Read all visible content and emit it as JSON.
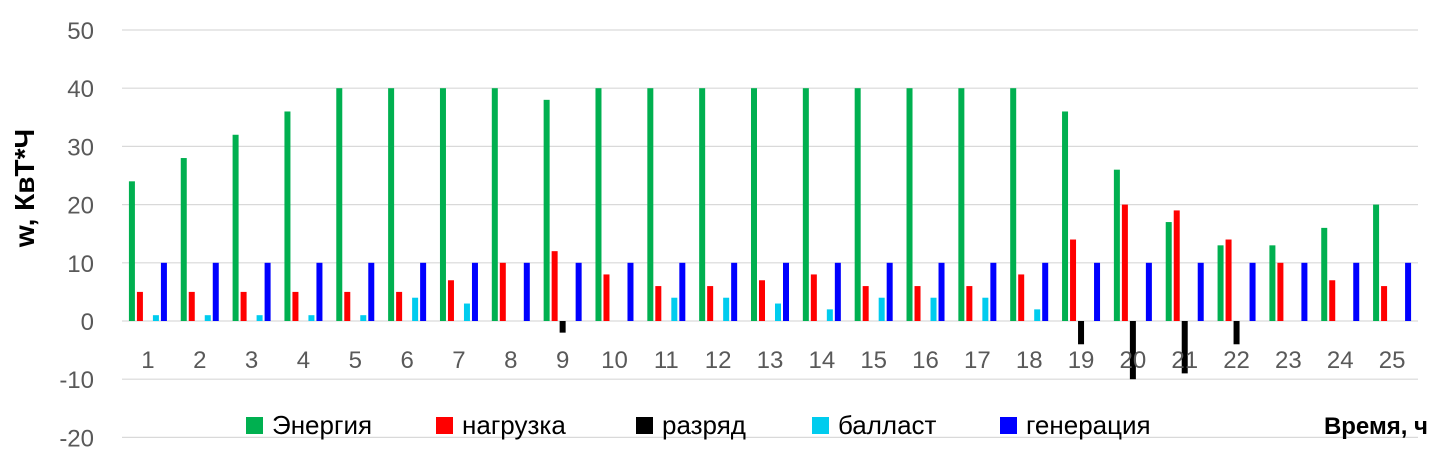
{
  "chart_data": {
    "type": "bar",
    "ylabel": "w, КвТ*Ч",
    "xlabel": "Время, ч",
    "ylim": [
      -20,
      50
    ],
    "yticks": [
      50,
      40,
      30,
      20,
      10,
      0,
      -10,
      -20
    ],
    "grid": true,
    "legend_position": "bottom",
    "categories": [
      "1",
      "2",
      "3",
      "4",
      "5",
      "6",
      "7",
      "8",
      "9",
      "10",
      "11",
      "12",
      "13",
      "14",
      "15",
      "16",
      "17",
      "18",
      "19",
      "20",
      "21",
      "22",
      "23",
      "24",
      "25"
    ],
    "series": [
      {
        "name": "Энергия",
        "color": "#00B050",
        "values": [
          24,
          28,
          32,
          36,
          40,
          40,
          40,
          40,
          38,
          40,
          40,
          40,
          40,
          40,
          40,
          40,
          40,
          40,
          36,
          26,
          17,
          13,
          13,
          16,
          20
        ]
      },
      {
        "name": "нагрузка",
        "color": "#FF0000",
        "values": [
          5,
          5,
          5,
          5,
          5,
          5,
          7,
          10,
          12,
          8,
          6,
          6,
          7,
          8,
          6,
          6,
          6,
          8,
          14,
          20,
          19,
          14,
          10,
          7,
          6
        ]
      },
      {
        "name": "разряд",
        "color": "#000000",
        "values": [
          0,
          0,
          0,
          0,
          0,
          0,
          0,
          0,
          -2,
          0,
          0,
          0,
          0,
          0,
          0,
          0,
          0,
          0,
          -4,
          -10,
          -9,
          -4,
          0,
          0,
          0
        ]
      },
      {
        "name": "балласт",
        "color": "#00CCEE",
        "values": [
          1,
          1,
          1,
          1,
          1,
          4,
          3,
          0,
          0,
          0,
          4,
          4,
          3,
          2,
          4,
          4,
          4,
          2,
          0,
          0,
          0,
          0,
          0,
          0,
          0
        ]
      },
      {
        "name": "генерация",
        "color": "#0000FF",
        "values": [
          10,
          10,
          10,
          10,
          10,
          10,
          10,
          10,
          10,
          10,
          10,
          10,
          10,
          10,
          10,
          10,
          10,
          10,
          10,
          10,
          10,
          10,
          10,
          10,
          10
        ]
      }
    ]
  }
}
